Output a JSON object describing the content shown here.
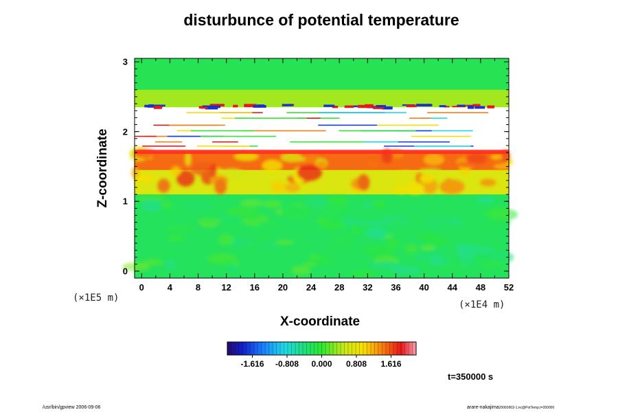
{
  "chart_data": {
    "type": "heatmap",
    "title": "disturbunce of potential temperature",
    "xlabel": "X-coordinate",
    "ylabel": "Z-coordinate",
    "x_unit": "(×1E4 m)",
    "y_unit": "(×1E5 m)",
    "x_ticks": [
      "0",
      "4",
      "8",
      "12",
      "16",
      "20",
      "24",
      "28",
      "32",
      "36",
      "40",
      "44",
      "48",
      "52"
    ],
    "y_ticks": [
      "0",
      "1",
      "2",
      "3"
    ],
    "xlim": [
      -1,
      52
    ],
    "ylim": [
      -0.1,
      3.05
    ],
    "colorbar": {
      "ticks": [
        "-1.616",
        "-0.808",
        "0.000",
        "0.808",
        "1.616"
      ],
      "range": [
        -2.2,
        2.2
      ],
      "colormap": "rainbow"
    },
    "bands": [
      {
        "z_from": -0.1,
        "z_to": 1.1,
        "value": -0.25
      },
      {
        "z_from": 1.1,
        "z_to": 1.45,
        "value": 0.7
      },
      {
        "z_from": 1.45,
        "z_to": 1.72,
        "value": 1.5
      },
      {
        "z_from": 1.72,
        "z_to": 2.35,
        "value": "saturated"
      },
      {
        "z_from": 2.35,
        "z_to": 2.6,
        "value": 0.4
      },
      {
        "z_from": 2.6,
        "z_to": 3.05,
        "value": -0.2
      }
    ],
    "annotation": "t=350000 s"
  },
  "footer": {
    "left": "/usr/bin/gpview 2006-09-06",
    "right_main": "arare-nakajima",
    "right_sub": "20060903-1.nc@PotTemp,t=350000"
  },
  "colors": {
    "background": "#ffffff",
    "frame": "#000000"
  }
}
